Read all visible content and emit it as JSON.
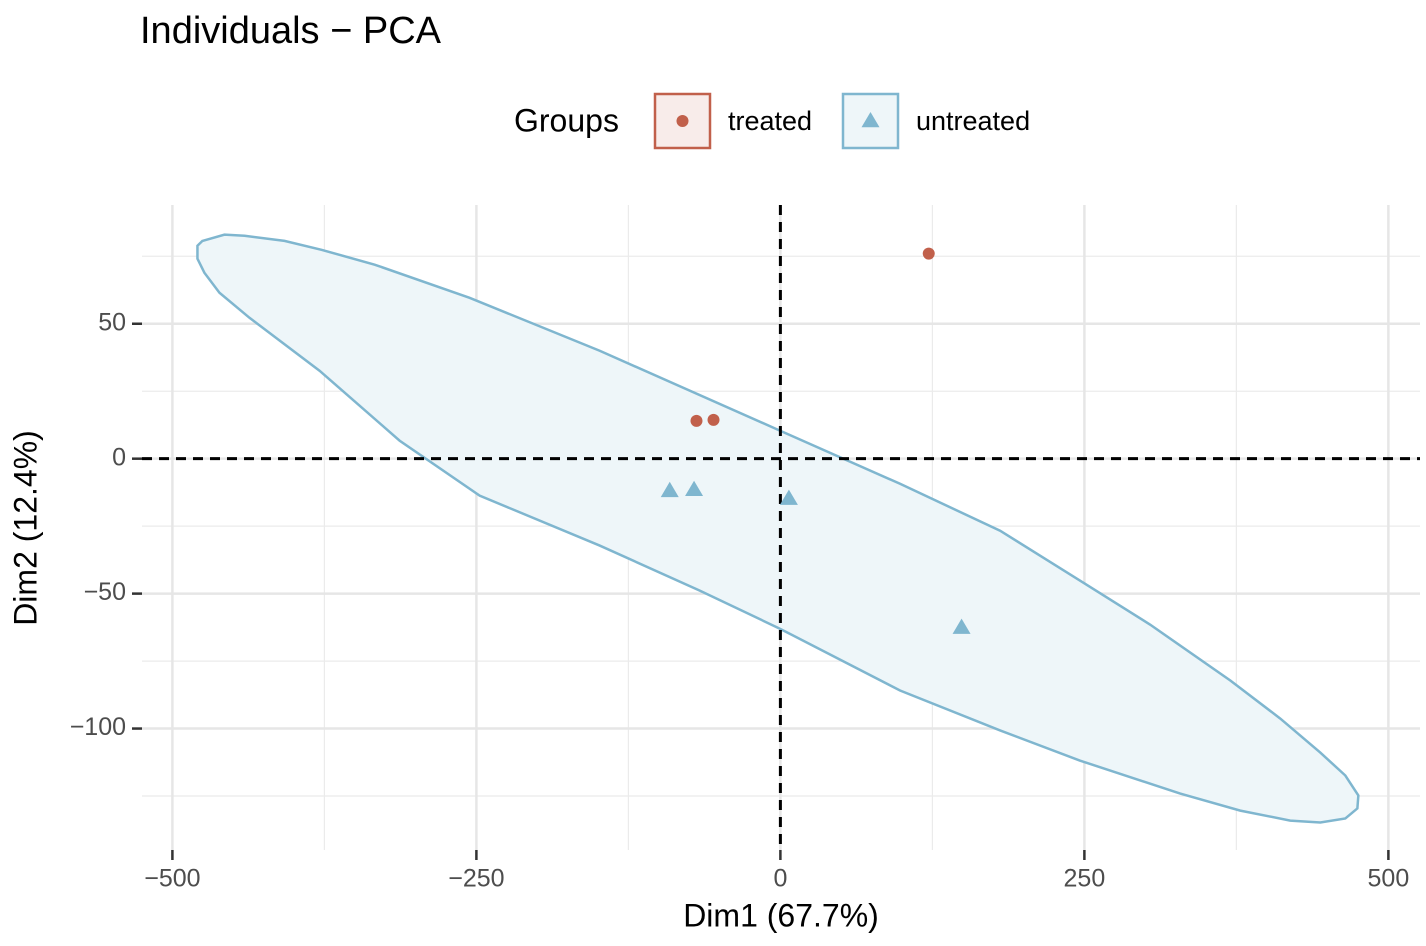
{
  "chart_data": {
    "type": "scatter",
    "title": "Individuals − PCA",
    "xlabel": "Dim1 (67.7%)",
    "ylabel": "Dim2 (12.4%)",
    "legend_title": "Groups",
    "legend": "top",
    "xlim": [
      -525,
      526
    ],
    "ylim": [
      -145,
      94
    ],
    "xticks": [
      {
        "value": -500,
        "label": "−500"
      },
      {
        "value": -250,
        "label": "−250"
      },
      0,
      250,
      500
    ],
    "yticks": [
      {
        "value": -100,
        "label": "−100"
      },
      {
        "value": -50,
        "label": "−50"
      },
      0,
      50
    ],
    "x_minor_grid": [
      -375,
      -125,
      125,
      375
    ],
    "y_minor_grid": [
      -125,
      -75,
      -25,
      25,
      75
    ],
    "grid": true,
    "hline": 0,
    "vline": 0,
    "series": [
      {
        "name": "treated",
        "color": "#c1604b",
        "shape": "circle",
        "x": [
          122,
          -69,
          -55
        ],
        "values": [
          76,
          14,
          14.4
        ]
      },
      {
        "name": "untreated",
        "color": "#7fb6cf",
        "shape": "triangle",
        "x": [
          -91,
          -71,
          7,
          149
        ],
        "values": [
          -11.9,
          -11.5,
          -14.8,
          -62.6
        ],
        "ellipse": {
          "fill": "#eef6f9",
          "x": [
            -475.3,
            -457.2,
            -440.7,
            -407.8,
            -377.4,
            -333.7,
            -255.6,
            -148.6,
            -0.4,
            98.4,
            180.7,
            246.5,
            304.1,
            370.0,
            411.1,
            444.0,
            464.6,
            475.3,
            474.5,
            464.6,
            444.0,
            419.3,
            378.2,
            328.8,
            246.5,
            180.7,
            98.4,
            -0.4,
            -66.3,
            -148.6,
            -247.3,
            -313.2,
            -379.0,
            -436.6,
            -461.3,
            -473.7,
            -479.4,
            -479.4
          ],
          "y": [
            80.7,
            83.0,
            82.6,
            80.7,
            77.4,
            71.9,
            59.6,
            40.0,
            10.4,
            -9.3,
            -26.7,
            -45.2,
            -61.5,
            -82.2,
            -96.3,
            -108.9,
            -117.4,
            -124.8,
            -129.6,
            -133.3,
            -134.8,
            -134.1,
            -130.4,
            -124.1,
            -111.9,
            -100.7,
            -85.9,
            -63.0,
            -48.9,
            -32.2,
            -13.7,
            6.7,
            32.6,
            52.2,
            61.5,
            68.9,
            74.1,
            78.9
          ]
        }
      }
    ]
  }
}
